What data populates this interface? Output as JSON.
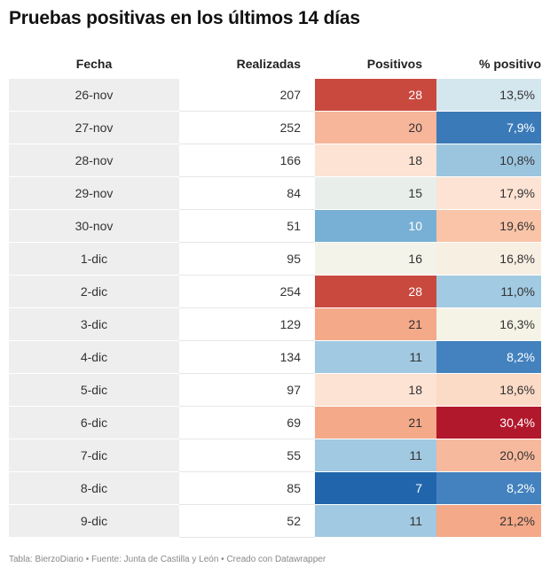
{
  "title": "Pruebas positivas en los últimos 14 días",
  "columns": [
    "Fecha",
    "Realizadas",
    "Positivos",
    "% positivo"
  ],
  "rows": [
    {
      "fecha": "26-nov",
      "realizadas": "207",
      "positivos": "28",
      "pct": "13,5%",
      "pos_bg": "#c9493f",
      "pos_fg": "#ffffff",
      "pct_bg": "#d4e6ee",
      "pct_fg": "#333333"
    },
    {
      "fecha": "27-nov",
      "realizadas": "252",
      "positivos": "20",
      "pct": "7,9%",
      "pos_bg": "#f7b59a",
      "pos_fg": "#333333",
      "pct_bg": "#3a7ab8",
      "pct_fg": "#ffffff"
    },
    {
      "fecha": "28-nov",
      "realizadas": "166",
      "positivos": "18",
      "pct": "10,8%",
      "pos_bg": "#fce3d3",
      "pos_fg": "#333333",
      "pct_bg": "#9bc5df",
      "pct_fg": "#333333"
    },
    {
      "fecha": "29-nov",
      "realizadas": "84",
      "positivos": "15",
      "pct": "17,9%",
      "pos_bg": "#e8eeea",
      "pos_fg": "#333333",
      "pct_bg": "#fce3d3",
      "pct_fg": "#333333"
    },
    {
      "fecha": "30-nov",
      "realizadas": "51",
      "positivos": "10",
      "pct": "19,6%",
      "pos_bg": "#78b0d5",
      "pos_fg": "#ffffff",
      "pct_bg": "#f9c4a8",
      "pct_fg": "#333333"
    },
    {
      "fecha": "1-dic",
      "realizadas": "95",
      "positivos": "16",
      "pct": "16,8%",
      "pos_bg": "#f3f3e9",
      "pos_fg": "#333333",
      "pct_bg": "#f8efe3",
      "pct_fg": "#333333"
    },
    {
      "fecha": "2-dic",
      "realizadas": "254",
      "positivos": "28",
      "pct": "11,0%",
      "pos_bg": "#c9493f",
      "pos_fg": "#ffffff",
      "pct_bg": "#a2cae2",
      "pct_fg": "#333333"
    },
    {
      "fecha": "3-dic",
      "realizadas": "129",
      "positivos": "21",
      "pct": "16,3%",
      "pos_bg": "#f4a989",
      "pos_fg": "#333333",
      "pct_bg": "#f4f3e6",
      "pct_fg": "#333333"
    },
    {
      "fecha": "4-dic",
      "realizadas": "134",
      "positivos": "11",
      "pct": "8,2%",
      "pos_bg": "#a1c9e1",
      "pos_fg": "#333333",
      "pct_bg": "#4382be",
      "pct_fg": "#ffffff"
    },
    {
      "fecha": "5-dic",
      "realizadas": "97",
      "positivos": "18",
      "pct": "18,6%",
      "pos_bg": "#fce3d3",
      "pos_fg": "#333333",
      "pct_bg": "#fbdac6",
      "pct_fg": "#333333"
    },
    {
      "fecha": "6-dic",
      "realizadas": "69",
      "positivos": "21",
      "pct": "30,4%",
      "pos_bg": "#f4a989",
      "pos_fg": "#333333",
      "pct_bg": "#b2182b",
      "pct_fg": "#ffffff"
    },
    {
      "fecha": "7-dic",
      "realizadas": "55",
      "positivos": "11",
      "pct": "20,0%",
      "pos_bg": "#a1c9e1",
      "pos_fg": "#333333",
      "pct_bg": "#f7b99d",
      "pct_fg": "#333333"
    },
    {
      "fecha": "8-dic",
      "realizadas": "85",
      "positivos": "7",
      "pct": "8,2%",
      "pos_bg": "#2166ac",
      "pos_fg": "#ffffff",
      "pct_bg": "#4382be",
      "pct_fg": "#ffffff"
    },
    {
      "fecha": "9-dic",
      "realizadas": "52",
      "positivos": "11",
      "pct": "21,2%",
      "pos_bg": "#a1c9e1",
      "pos_fg": "#333333",
      "pct_bg": "#f4a989",
      "pct_fg": "#333333"
    }
  ],
  "footer": "Tabla: BierzoDiario • Fuente: Junta de Castilla y León • Creado con Datawrapper",
  "chart_data": {
    "type": "table",
    "title": "Pruebas positivas en los últimos 14 días",
    "columns": [
      "Fecha",
      "Realizadas",
      "Positivos",
      "% positivo"
    ],
    "categories": [
      "26-nov",
      "27-nov",
      "28-nov",
      "29-nov",
      "30-nov",
      "1-dic",
      "2-dic",
      "3-dic",
      "4-dic",
      "5-dic",
      "6-dic",
      "7-dic",
      "8-dic",
      "9-dic"
    ],
    "series": [
      {
        "name": "Realizadas",
        "values": [
          207,
          252,
          166,
          84,
          51,
          95,
          254,
          129,
          134,
          97,
          69,
          55,
          85,
          52
        ]
      },
      {
        "name": "Positivos",
        "values": [
          28,
          20,
          18,
          15,
          10,
          16,
          28,
          21,
          11,
          18,
          21,
          11,
          7,
          11
        ]
      },
      {
        "name": "% positivo",
        "values": [
          13.5,
          7.9,
          10.8,
          17.9,
          19.6,
          16.8,
          11.0,
          16.3,
          8.2,
          18.6,
          30.4,
          20.0,
          8.2,
          21.2
        ]
      }
    ]
  }
}
